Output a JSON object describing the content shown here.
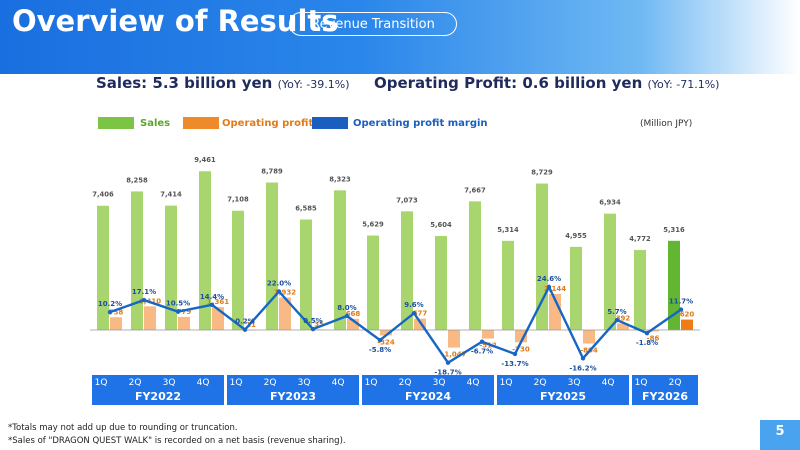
{
  "header": {
    "title": "Overview of Results",
    "pill": "Revenue Transition"
  },
  "kpi": {
    "sales": "Sales: 5.3 billion yen",
    "sales_yoy": "(YoY: -39.1%)",
    "op": "Operating Profit: 0.6 billion yen",
    "op_yoy": "(YoY: -71.1%)"
  },
  "unit_label": "(Million JPY)",
  "colors": {
    "sales": "#a9d56e",
    "sales_latest": "#62b632",
    "op": "#f8b985",
    "op_latest": "#ee7d12",
    "margin": "#1666c4",
    "band": "#1f73e6"
  },
  "chart_data": {
    "type": "bar",
    "categories": [
      "1Q FY2022",
      "2Q FY2022",
      "3Q FY2022",
      "4Q FY2022",
      "1Q FY2023",
      "2Q FY2023",
      "3Q FY2023",
      "4Q FY2023",
      "1Q FY2024",
      "2Q FY2024",
      "3Q FY2024",
      "4Q FY2024",
      "1Q FY2025",
      "2Q FY2025",
      "3Q FY2025",
      "4Q FY2025",
      "1Q FY2026",
      "2Q FY2026"
    ],
    "series": [
      {
        "name": "Sales",
        "values": [
          7406,
          8258,
          7414,
          9461,
          7108,
          8789,
          6585,
          8323,
          5629,
          7073,
          5604,
          7667,
          5314,
          8729,
          4955,
          6934,
          4772,
          5316
        ],
        "labels": [
          "7,406",
          "8,258",
          "7,414",
          "9,461",
          "7,108",
          "8,789",
          "6,585",
          "8,323",
          "5,629",
          "7,073",
          "5,604",
          "7,667",
          "5,314",
          "8,729",
          "4,955",
          "6,934",
          "4,772",
          "5,316"
        ]
      },
      {
        "name": "Operating profit",
        "values": [
          758,
          1410,
          779,
          1361,
          11,
          1932,
          35,
          668,
          -324,
          677,
          -1047,
          -512,
          -730,
          2144,
          -804,
          392,
          -86,
          620
        ],
        "labels": [
          "758",
          "1,410",
          "779",
          "1,361",
          "11",
          "1,932",
          "35",
          "668",
          "-324",
          "677",
          "-1,047",
          "-512",
          "-730",
          "2,144",
          "-804",
          "392",
          "-86",
          "620"
        ]
      },
      {
        "name": "Operating profit margin",
        "values": [
          10.2,
          17.1,
          10.5,
          14.4,
          0.2,
          22.0,
          0.5,
          8.0,
          -5.8,
          9.6,
          -18.7,
          -6.7,
          -13.7,
          24.6,
          -16.2,
          5.7,
          -1.8,
          11.7
        ],
        "labels": [
          "10.2%",
          "17.1%",
          "10.5%",
          "14.4%",
          "0.2%",
          "22.0%",
          "0.5%",
          "8.0%",
          "-5.8%",
          "9.6%",
          "-18.7%",
          "-6.7%",
          "-13.7%",
          "24.6%",
          "-16.2%",
          "5.7%",
          "-1.8%",
          "11.7%"
        ]
      }
    ],
    "fiscal_years": [
      {
        "label": "FY2022",
        "quarters": [
          "1Q",
          "2Q",
          "3Q",
          "4Q"
        ]
      },
      {
        "label": "FY2023",
        "quarters": [
          "1Q",
          "2Q",
          "3Q",
          "4Q"
        ]
      },
      {
        "label": "FY2024",
        "quarters": [
          "1Q",
          "2Q",
          "3Q",
          "4Q"
        ]
      },
      {
        "label": "FY2025",
        "quarters": [
          "1Q",
          "2Q",
          "3Q",
          "4Q"
        ]
      },
      {
        "label": "FY2026",
        "quarters": [
          "1Q",
          "2Q"
        ]
      }
    ],
    "legend_position": "top-left",
    "grid": false
  },
  "notes": [
    "*Totals may not add up due to rounding or truncation.",
    "*Sales of \"DRAGON QUEST WALK\" is recorded on a net basis (revenue sharing)."
  ],
  "page_number": "5"
}
